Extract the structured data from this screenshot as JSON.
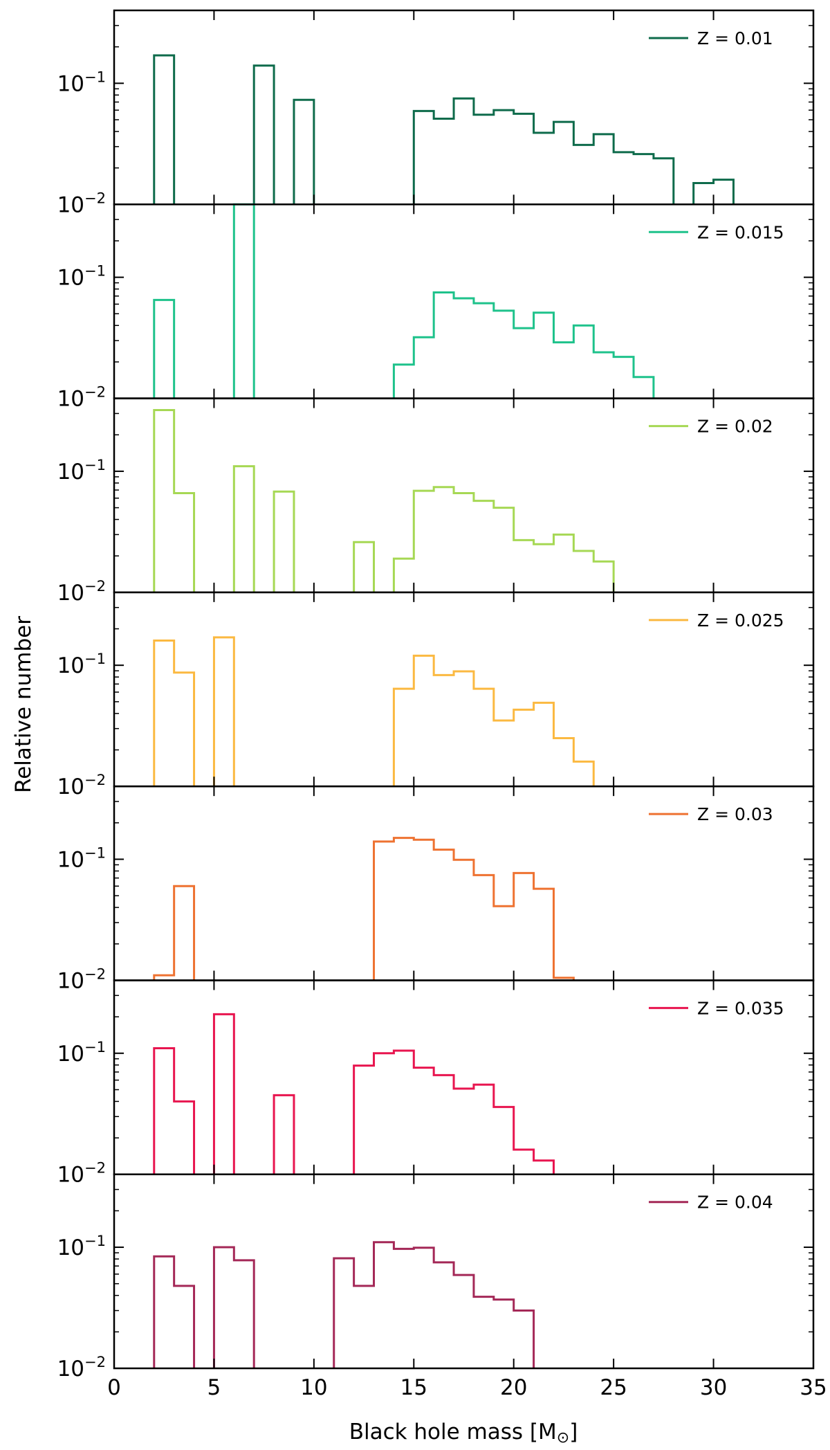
{
  "chart_data": {
    "type": "histogram-step",
    "xlabel": "Black hole mass [M",
    "xlabel_symbol": "⊙",
    "xlabel_suffix": "]",
    "ylabel": "Relative number",
    "xlim": [
      0,
      35
    ],
    "ylim": [
      0.01,
      0.4
    ],
    "yscale": "log",
    "xticks": [
      "0",
      "5",
      "10",
      "15",
      "20",
      "25",
      "30",
      "35"
    ],
    "yticks": [
      {
        "base": "10",
        "exp": "−1"
      },
      {
        "base": "10",
        "exp": "−2"
      }
    ],
    "legend_position": "top-right",
    "bin_width": 1,
    "panels": [
      {
        "name": "Z = 0.01",
        "color": "#0e6b4b",
        "bars": [
          [
            2,
            0.17
          ],
          [
            7,
            0.14
          ],
          [
            9,
            0.073
          ],
          [
            15,
            0.059
          ],
          [
            16,
            0.051
          ],
          [
            17,
            0.075
          ],
          [
            18,
            0.055
          ],
          [
            19,
            0.06
          ],
          [
            20,
            0.056
          ],
          [
            21,
            0.039
          ],
          [
            22,
            0.048
          ],
          [
            23,
            0.031
          ],
          [
            24,
            0.038
          ],
          [
            25,
            0.027
          ],
          [
            26,
            0.026
          ],
          [
            27,
            0.024
          ],
          [
            29,
            0.015
          ],
          [
            30,
            0.016
          ]
        ]
      },
      {
        "name": "Z = 0.015",
        "color": "#1ec28b",
        "bars": [
          [
            2,
            0.065
          ],
          [
            6,
            0.4
          ],
          [
            14,
            0.019
          ],
          [
            15,
            0.032
          ],
          [
            16,
            0.075
          ],
          [
            17,
            0.067
          ],
          [
            18,
            0.061
          ],
          [
            19,
            0.053
          ],
          [
            20,
            0.038
          ],
          [
            21,
            0.051
          ],
          [
            22,
            0.029
          ],
          [
            23,
            0.04
          ],
          [
            24,
            0.024
          ],
          [
            25,
            0.022
          ],
          [
            26,
            0.015
          ]
        ]
      },
      {
        "name": "Z = 0.02",
        "color": "#a6d854",
        "bars": [
          [
            2,
            0.32
          ],
          [
            3,
            0.066
          ],
          [
            6,
            0.11
          ],
          [
            8,
            0.068
          ],
          [
            12,
            0.026
          ],
          [
            14,
            0.019
          ],
          [
            15,
            0.069
          ],
          [
            16,
            0.074
          ],
          [
            17,
            0.066
          ],
          [
            18,
            0.057
          ],
          [
            19,
            0.05
          ],
          [
            20,
            0.027
          ],
          [
            21,
            0.025
          ],
          [
            22,
            0.03
          ],
          [
            23,
            0.022
          ],
          [
            24,
            0.018
          ]
        ]
      },
      {
        "name": "Z = 0.025",
        "color": "#fbb941",
        "bars": [
          [
            2,
            0.16
          ],
          [
            3,
            0.087
          ],
          [
            5,
            0.17
          ],
          [
            14,
            0.064
          ],
          [
            15,
            0.12
          ],
          [
            16,
            0.083
          ],
          [
            17,
            0.089
          ],
          [
            18,
            0.064
          ],
          [
            19,
            0.035
          ],
          [
            20,
            0.043
          ],
          [
            21,
            0.049
          ],
          [
            22,
            0.025
          ],
          [
            23,
            0.016
          ]
        ]
      },
      {
        "name": "Z = 0.03",
        "color": "#ee7231",
        "bars": [
          [
            2,
            0.011
          ],
          [
            3,
            0.06
          ],
          [
            13,
            0.14
          ],
          [
            14,
            0.15
          ],
          [
            15,
            0.145
          ],
          [
            16,
            0.12
          ],
          [
            17,
            0.099
          ],
          [
            18,
            0.074
          ],
          [
            19,
            0.041
          ],
          [
            20,
            0.077
          ],
          [
            21,
            0.057
          ],
          [
            22,
            0.0105
          ]
        ]
      },
      {
        "name": "Z = 0.035",
        "color": "#e8154f",
        "bars": [
          [
            2,
            0.11
          ],
          [
            3,
            0.04
          ],
          [
            5,
            0.21
          ],
          [
            8,
            0.045
          ],
          [
            12,
            0.079
          ],
          [
            13,
            0.1
          ],
          [
            14,
            0.105
          ],
          [
            15,
            0.076
          ],
          [
            16,
            0.066
          ],
          [
            17,
            0.051
          ],
          [
            18,
            0.055
          ],
          [
            19,
            0.036
          ],
          [
            20,
            0.016
          ],
          [
            21,
            0.013
          ]
        ]
      },
      {
        "name": "Z = 0.04",
        "color": "#a42857",
        "bars": [
          [
            2,
            0.084
          ],
          [
            3,
            0.048
          ],
          [
            5,
            0.1
          ],
          [
            6,
            0.078
          ],
          [
            11,
            0.081
          ],
          [
            12,
            0.048
          ],
          [
            13,
            0.11
          ],
          [
            14,
            0.097
          ],
          [
            15,
            0.099
          ],
          [
            16,
            0.075
          ],
          [
            17,
            0.059
          ],
          [
            18,
            0.039
          ],
          [
            19,
            0.037
          ],
          [
            20,
            0.03
          ]
        ]
      }
    ]
  }
}
